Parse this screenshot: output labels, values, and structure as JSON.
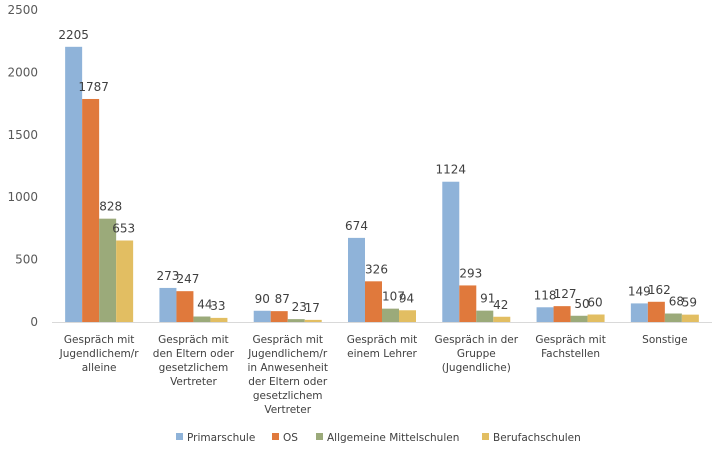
{
  "chart_data": {
    "type": "bar",
    "title": "",
    "xlabel": "",
    "ylabel": "",
    "ylim": [
      0,
      2500
    ],
    "yticks": [
      0,
      500,
      1000,
      1500,
      2000,
      2500
    ],
    "grid": false,
    "legend_position": "bottom",
    "categories": [
      [
        "Gespräch mit",
        "Jugendlichem/r",
        "alleine"
      ],
      [
        "Gespräch mit",
        "den Eltern oder",
        "gesetzlichem",
        "Vertreter"
      ],
      [
        "Gespräch mit",
        "Jugendlichem/r",
        "in Anwesenheit",
        "der Eltern oder",
        "gesetzlichem",
        "Vertreter"
      ],
      [
        "Gespräch mit",
        "einem Lehrer"
      ],
      [
        "Gespräch in der",
        "Gruppe",
        "(Jugendliche)"
      ],
      [
        "Gespräch mit",
        "Fachstellen"
      ],
      [
        "Sonstige"
      ]
    ],
    "series": [
      {
        "name": "Primarschule",
        "color": "#8FB3D9",
        "values": [
          2205,
          273,
          90,
          674,
          1124,
          118,
          149
        ]
      },
      {
        "name": "OS",
        "color": "#E0793C",
        "values": [
          1787,
          247,
          87,
          326,
          293,
          127,
          162
        ]
      },
      {
        "name": "Allgemeine Mittelschulen",
        "color": "#9BAA7A",
        "values": [
          828,
          44,
          23,
          107,
          91,
          50,
          68
        ]
      },
      {
        "name": "Berufachschulen",
        "color": "#E2BE62",
        "values": [
          653,
          33,
          17,
          94,
          42,
          60,
          59
        ]
      }
    ]
  }
}
